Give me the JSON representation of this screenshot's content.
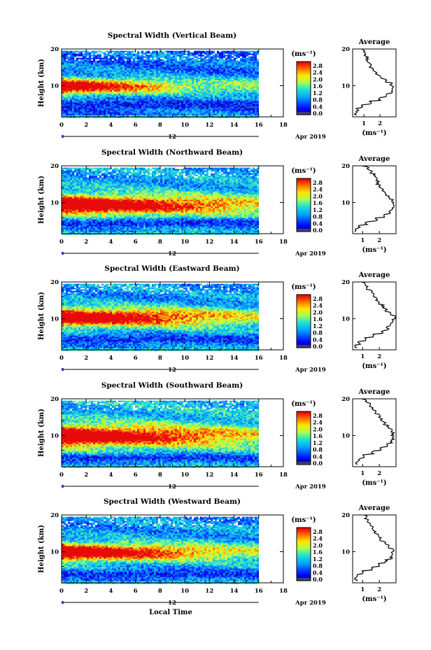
{
  "shared": {
    "xlabel": "Local Time",
    "ylabel": "Height (km)",
    "date_day": "12",
    "date_month_year": "Apr 2019",
    "colorbar_unit": "(ms⁻¹)",
    "avg_title": "Average",
    "avg_xlabel": "(ms⁻¹)",
    "colorbar_ticks": [
      "0.0",
      "0.4",
      "0.8",
      "1.2",
      "1.6",
      "2.0",
      "2.4",
      "2.8"
    ],
    "x_ticks": [
      "0",
      "2",
      "4",
      "6",
      "8",
      "10",
      "12",
      "14",
      "16",
      "18"
    ],
    "y_ticks": [
      "10",
      "20"
    ]
  },
  "chart_data": [
    {
      "type": "heatmap",
      "title": "Spectral Width (Vertical Beam)",
      "xlabel": "Local Time",
      "ylabel": "Height (km)",
      "xlim": [
        0,
        18
      ],
      "ylim": [
        1.5,
        20
      ],
      "data_end_hour": 16,
      "color_range": [
        0.0,
        3.0
      ],
      "core_height_km": 10,
      "core_width_km": 2.2,
      "core_peak": 3.0,
      "core_fade_hour": 8,
      "low_layer_height_km": 5,
      "low_layer_value": 0.4,
      "upper_value": 0.8,
      "average_profile": {
        "title": "Average",
        "xlabel": "(ms⁻¹)",
        "xlim": [
          0.3,
          3.0
        ],
        "xticks": [
          "1",
          "2"
        ],
        "yticks": [
          "10",
          "20"
        ],
        "heights": [
          2,
          3,
          4,
          5,
          6,
          7,
          8,
          9,
          10,
          11,
          12,
          13,
          14,
          15,
          16,
          17,
          18,
          19,
          20
        ],
        "values": [
          0.5,
          0.6,
          0.9,
          1.4,
          2.0,
          2.4,
          2.7,
          2.8,
          2.7,
          2.4,
          2.0,
          1.8,
          1.6,
          1.4,
          1.3,
          1.2,
          1.1,
          1.0,
          0.9
        ]
      }
    },
    {
      "type": "heatmap",
      "title": "Spectral Width (Northward Beam)",
      "xlabel": "Local Time",
      "ylabel": "Height (km)",
      "xlim": [
        0,
        18
      ],
      "ylim": [
        1.5,
        20
      ],
      "data_end_hour": 16,
      "color_range": [
        0.0,
        3.0
      ],
      "core_height_km": 9.5,
      "core_width_km": 2.6,
      "core_peak": 3.0,
      "core_fade_hour": 13,
      "low_layer_height_km": 4.5,
      "low_layer_value": 0.5,
      "upper_value": 1.1,
      "average_profile": {
        "title": "Average",
        "xlabel": "(ms⁻¹)",
        "xlim": [
          0.4,
          3.0
        ],
        "xticks": [
          "1",
          "2"
        ],
        "yticks": [
          "10",
          "20"
        ],
        "heights": [
          2,
          3,
          4,
          5,
          6,
          7,
          8,
          9,
          10,
          11,
          12,
          13,
          14,
          15,
          16,
          17,
          18,
          19,
          20
        ],
        "values": [
          0.6,
          0.8,
          1.2,
          1.8,
          2.3,
          2.6,
          2.8,
          2.9,
          2.8,
          2.6,
          2.4,
          2.2,
          2.0,
          1.9,
          1.8,
          1.7,
          1.5,
          1.3,
          1.0
        ]
      }
    },
    {
      "type": "heatmap",
      "title": "Spectral Width (Eastward Beam)",
      "xlabel": "Local Time",
      "ylabel": "Height (km)",
      "xlim": [
        0,
        18
      ],
      "ylim": [
        1.5,
        20
      ],
      "data_end_hour": 16,
      "color_range": [
        0.0,
        3.0
      ],
      "core_height_km": 10.5,
      "core_width_km": 2.5,
      "core_peak": 3.0,
      "core_fade_hour": 12,
      "low_layer_height_km": 4.5,
      "low_layer_value": 0.5,
      "upper_value": 1.0,
      "average_profile": {
        "title": "Average",
        "xlabel": "(ms⁻¹)",
        "xlim": [
          0.4,
          3.0
        ],
        "xticks": [
          "1",
          "2"
        ],
        "yticks": [
          "10",
          "20"
        ],
        "heights": [
          2,
          3,
          4,
          5,
          6,
          7,
          8,
          9,
          10,
          11,
          12,
          13,
          14,
          15,
          16,
          17,
          18,
          19,
          20
        ],
        "values": [
          0.6,
          0.8,
          1.2,
          1.7,
          2.2,
          2.5,
          2.7,
          2.8,
          2.9,
          2.7,
          2.4,
          2.2,
          2.0,
          1.8,
          1.7,
          1.5,
          1.3,
          1.1,
          0.9
        ]
      }
    },
    {
      "type": "heatmap",
      "title": "Spectral Width (Southward Beam)",
      "xlabel": "Local Time",
      "ylabel": "Height (km)",
      "xlim": [
        0,
        18
      ],
      "ylim": [
        1.5,
        20
      ],
      "data_end_hour": 16,
      "color_range": [
        0.0,
        3.0
      ],
      "core_height_km": 10,
      "core_width_km": 2.8,
      "core_peak": 2.9,
      "core_fade_hour": 12,
      "low_layer_height_km": 4,
      "low_layer_value": 0.5,
      "upper_value": 1.2,
      "average_profile": {
        "title": "Average",
        "xlabel": "(ms⁻¹)",
        "xlim": [
          0.4,
          3.0
        ],
        "xticks": [
          "1",
          "2"
        ],
        "yticks": [
          "10",
          "20"
        ],
        "heights": [
          2,
          3,
          4,
          5,
          6,
          7,
          8,
          9,
          10,
          11,
          12,
          13,
          14,
          15,
          16,
          17,
          18,
          19,
          20
        ],
        "values": [
          0.6,
          0.8,
          1.1,
          1.6,
          2.1,
          2.5,
          2.7,
          2.8,
          2.8,
          2.7,
          2.5,
          2.3,
          2.1,
          2.0,
          1.8,
          1.6,
          1.4,
          1.2,
          1.0
        ]
      }
    },
    {
      "type": "heatmap",
      "title": "Spectral Width (Westward Beam)",
      "xlabel": "Local Time",
      "ylabel": "Height (km)",
      "xlim": [
        0,
        18
      ],
      "ylim": [
        1.5,
        20
      ],
      "data_end_hour": 16,
      "color_range": [
        0.0,
        3.0
      ],
      "core_height_km": 10,
      "core_width_km": 2.3,
      "core_peak": 3.0,
      "core_fade_hour": 11,
      "low_layer_height_km": 4,
      "low_layer_value": 0.5,
      "upper_value": 1.0,
      "average_profile": {
        "title": "Average",
        "xlabel": "(ms⁻¹)",
        "xlim": [
          0.4,
          3.0
        ],
        "xticks": [
          "1",
          "2"
        ],
        "yticks": [
          "10",
          "20"
        ],
        "heights": [
          2,
          3,
          4,
          5,
          6,
          7,
          8,
          9,
          10,
          11,
          12,
          13,
          14,
          15,
          16,
          17,
          18,
          19,
          20
        ],
        "values": [
          0.6,
          0.7,
          1.0,
          1.5,
          2.0,
          2.4,
          2.7,
          2.8,
          2.8,
          2.6,
          2.3,
          2.1,
          1.9,
          1.7,
          1.6,
          1.5,
          1.3,
          1.2,
          1.0
        ]
      }
    }
  ]
}
